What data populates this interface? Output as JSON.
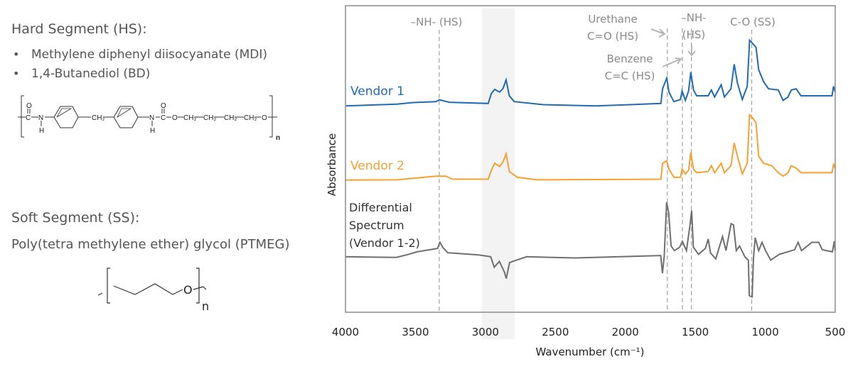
{
  "left_panel": {
    "hard_segment_title": "Hard Segment (HS):",
    "hard_segment_items": [
      "Methylene diphenyl diisocyanate (MDI)",
      "1,4-Butanediol (BD)"
    ],
    "bullet": "•",
    "soft_segment_title": "Soft Segment (SS):",
    "soft_segment_item": "Poly(tetra methylene ether) glycol (PTMEG)",
    "hs_structure_labels": {
      "c": "C",
      "o": "O",
      "n": "N",
      "h": "H",
      "ch2": "CH₂",
      "repeat": "n"
    },
    "ss_structure_labels": {
      "o": "O",
      "repeat": "n"
    }
  },
  "chart_data": {
    "type": "line",
    "xlabel": "Wavenumber (cm⁻¹)",
    "ylabel": "Absorbance",
    "xlim": [
      4000,
      500
    ],
    "x_reversed": true,
    "ylim": [
      0,
      100
    ],
    "y_ticks_shown": false,
    "x_ticks": [
      4000,
      3500,
      3000,
      2500,
      2000,
      1500,
      1000,
      500
    ],
    "grid": false,
    "highlight_band": [
      3025,
      2790
    ],
    "reference_lines": [
      3330,
      1700,
      1592,
      1528,
      1097
    ],
    "annotations": [
      {
        "lines": [
          "–NH- (HS)"
        ],
        "wavenumber": 3330
      },
      {
        "lines": [
          "Urethane",
          "C=O (HS)"
        ],
        "wavenumber": 1700
      },
      {
        "lines": [
          "–NH-",
          "(HS)"
        ],
        "wavenumber": 1528
      },
      {
        "lines": [
          "Benzene",
          "C=C (HS)"
        ],
        "wavenumber": 1592
      },
      {
        "lines": [
          "C-O (SS)"
        ],
        "wavenumber": 1097
      }
    ],
    "series": [
      {
        "name": "Vendor 1",
        "label_lines": [
          "Vendor 1"
        ],
        "color": "#1f6ab4",
        "x": [
          4000,
          3632,
          3516,
          3353,
          3329,
          3259,
          2980,
          2957,
          2933,
          2899,
          2875,
          2852,
          2829,
          2794,
          2584,
          2212,
          1746,
          1734,
          1704,
          1688,
          1653,
          1606,
          1594,
          1571,
          1548,
          1532,
          1513,
          1490,
          1408,
          1385,
          1362,
          1315,
          1292,
          1245,
          1222,
          1199,
          1164,
          1129,
          1112,
          1089,
          1066,
          1047,
          1012,
          977,
          907,
          873,
          838,
          814,
          779,
          745,
          523,
          512,
          500
        ],
        "y": [
          67.3,
          67.9,
          68.4,
          68.7,
          69.3,
          68.5,
          68.1,
          71.4,
          72.7,
          71.8,
          72.9,
          75.8,
          70.6,
          68.7,
          67.7,
          67.3,
          68.1,
          72.9,
          76.4,
          71.8,
          68.7,
          69.4,
          72.2,
          69.1,
          72.2,
          78.3,
          72.5,
          70.6,
          70.6,
          72.5,
          70.2,
          74.2,
          70.2,
          72.9,
          80.9,
          74.8,
          69.4,
          73.7,
          88.7,
          87.6,
          86.4,
          79.1,
          75.2,
          72.9,
          72.5,
          69.1,
          70.2,
          72.5,
          72.9,
          70.6,
          70.6,
          73.7,
          71.8
        ]
      },
      {
        "name": "Vendor 2",
        "label_lines": [
          "Vendor 2"
        ],
        "color": "#f7a030",
        "x": [
          4000,
          3632,
          3353,
          3283,
          3236,
          2980,
          2957,
          2933,
          2899,
          2875,
          2852,
          2829,
          2771,
          2631,
          1746,
          1734,
          1704,
          1688,
          1653,
          1606,
          1594,
          1571,
          1548,
          1532,
          1513,
          1490,
          1408,
          1385,
          1362,
          1315,
          1292,
          1245,
          1222,
          1199,
          1164,
          1129,
          1112,
          1089,
          1066,
          1047,
          1012,
          954,
          907,
          873,
          838,
          814,
          779,
          745,
          523,
          512,
          500
        ],
        "y": [
          43.1,
          43.2,
          44.4,
          44.4,
          43.4,
          43.4,
          46.3,
          48.6,
          47.5,
          49.0,
          51.7,
          45.9,
          44.0,
          43.2,
          43.4,
          48.6,
          49.4,
          46.7,
          44.0,
          44.0,
          46.7,
          45.1,
          46.3,
          52.1,
          46.7,
          45.5,
          45.9,
          47.8,
          45.5,
          48.6,
          45.5,
          47.8,
          55.2,
          50.9,
          45.1,
          48.6,
          64.4,
          63.3,
          61.7,
          50.9,
          48.6,
          47.8,
          45.5,
          44.4,
          45.5,
          47.8,
          47.0,
          45.5,
          45.5,
          48.2,
          47.0
        ]
      },
      {
        "name": "Differential Spectrum (Vendor 1-2)",
        "label_lines": [
          "Differential",
          "Spectrum",
          "(Vendor 1-2)"
        ],
        "color": "#6f6f6f",
        "x": [
          4000,
          3637,
          3563,
          3489,
          3342,
          3325,
          3305,
          3269,
          3048,
          2962,
          2937,
          2900,
          2864,
          2851,
          2827,
          2778,
          2704,
          2360,
          1747,
          1735,
          1722,
          1705,
          1690,
          1673,
          1649,
          1612,
          1592,
          1563,
          1538,
          1526,
          1514,
          1477,
          1428,
          1408,
          1391,
          1354,
          1305,
          1281,
          1244,
          1227,
          1207,
          1183,
          1146,
          1121,
          1114,
          1094,
          1084,
          1072,
          1047,
          1023,
          998,
          961,
          900,
          790,
          765,
          741,
          667,
          618,
          593,
          520,
          507,
          500
        ],
        "y": [
          18.1,
          17.9,
          18.7,
          19.7,
          20.8,
          22.8,
          21.2,
          19.4,
          18.7,
          18.1,
          14.7,
          16.6,
          13.1,
          11.0,
          16.2,
          17.0,
          18.1,
          17.7,
          18.5,
          12.7,
          18.1,
          35.9,
          32.4,
          21.6,
          20.1,
          21.2,
          23.1,
          20.1,
          28.5,
          33.2,
          21.2,
          18.9,
          20.8,
          23.9,
          19.3,
          17.4,
          24.7,
          20.1,
          28.9,
          28.5,
          20.1,
          21.6,
          18.1,
          17.0,
          5.4,
          5.0,
          17.7,
          24.3,
          20.1,
          22.8,
          20.1,
          17.0,
          18.9,
          20.4,
          22.8,
          20.1,
          22.8,
          22.8,
          20.4,
          19.7,
          23.1,
          20.1
        ]
      }
    ]
  }
}
